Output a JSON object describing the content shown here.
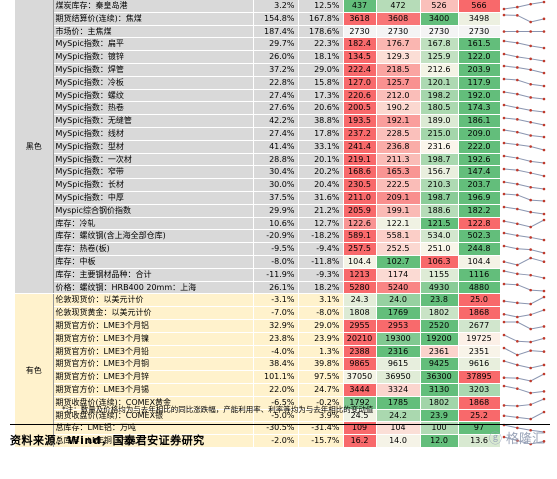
{
  "colors": {
    "black_cat_bg": "#d9d9d9",
    "color_cat_bg": "#fff2cc",
    "red": "#f8696b",
    "green": "#63be7b"
  },
  "sections": [
    {
      "label": "黑色",
      "rows": [
        {
          "name": "煤炭库存：秦皇岛港",
          "p1": "3.2%",
          "p2": "12.5%",
          "v": [
            "437",
            "472",
            "526",
            "566"
          ]
        },
        {
          "name": "期货结算价(连续)：焦煤",
          "p1": "154.8%",
          "p2": "167.8%",
          "v": [
            "3618",
            "3608",
            "3400",
            "3498"
          ]
        },
        {
          "name": "市场价：主焦煤",
          "p1": "187.4%",
          "p2": "178.6%",
          "v": [
            "2730",
            "2730",
            "2730",
            "2730"
          ]
        },
        {
          "name": "MySpic指数：扁平",
          "p1": "29.7%",
          "p2": "22.3%",
          "v": [
            "182.4",
            "176.7",
            "167.8",
            "161.5"
          ]
        },
        {
          "name": "MySpic指数：镀锌",
          "p1": "26.0%",
          "p2": "18.1%",
          "v": [
            "134.5",
            "129.3",
            "125.9",
            "122.0"
          ]
        },
        {
          "name": "MySpic指数：焊管",
          "p1": "37.2%",
          "p2": "29.0%",
          "v": [
            "222.4",
            "218.5",
            "212.6",
            "203.9"
          ]
        },
        {
          "name": "MySpic指数：冷板",
          "p1": "22.8%",
          "p2": "15.8%",
          "v": [
            "127.0",
            "125.7",
            "120.1",
            "117.9"
          ]
        },
        {
          "name": "MySpic指数：螺纹",
          "p1": "27.4%",
          "p2": "17.3%",
          "v": [
            "220.6",
            "212.0",
            "198.2",
            "192.0"
          ]
        },
        {
          "name": "MySpic指数：热卷",
          "p1": "27.6%",
          "p2": "20.6%",
          "v": [
            "200.5",
            "190.2",
            "180.5",
            "174.3"
          ]
        },
        {
          "name": "MySpic指数：无缝管",
          "p1": "42.2%",
          "p2": "38.8%",
          "v": [
            "193.5",
            "192.1",
            "189.0",
            "186.1"
          ]
        },
        {
          "name": "MySpic指数：线材",
          "p1": "27.4%",
          "p2": "17.8%",
          "v": [
            "237.2",
            "228.5",
            "215.0",
            "209.0"
          ]
        },
        {
          "name": "MySpic指数：型材",
          "p1": "41.4%",
          "p2": "33.1%",
          "v": [
            "241.4",
            "236.8",
            "231.6",
            "222.0"
          ]
        },
        {
          "name": "MySpic指数：一次材",
          "p1": "28.8%",
          "p2": "20.1%",
          "v": [
            "219.1",
            "211.3",
            "198.7",
            "192.6"
          ]
        },
        {
          "name": "MySpic指数：窄带",
          "p1": "30.4%",
          "p2": "20.2%",
          "v": [
            "168.6",
            "165.3",
            "156.7",
            "147.4"
          ]
        },
        {
          "name": "MySpic指数：长材",
          "p1": "30.0%",
          "p2": "20.4%",
          "v": [
            "230.5",
            "222.5",
            "210.3",
            "203.7"
          ]
        },
        {
          "name": "MySpic指数：中厚",
          "p1": "37.5%",
          "p2": "31.6%",
          "v": [
            "211.0",
            "209.1",
            "198.7",
            "196.9"
          ]
        },
        {
          "name": "Myspic综合钢价指数",
          "p1": "29.9%",
          "p2": "21.2%",
          "v": [
            "205.9",
            "199.1",
            "188.6",
            "182.2"
          ]
        },
        {
          "name": "库存：冷轧",
          "p1": "10.6%",
          "p2": "12.7%",
          "v": [
            "122.6",
            "122.1",
            "121.5",
            "122.8"
          ]
        },
        {
          "name": "库存：螺纹钢(含上海全部仓库)",
          "p1": "-20.9%",
          "p2": "-18.2%",
          "v": [
            "589.1",
            "558.1",
            "534.0",
            "502.3"
          ]
        },
        {
          "name": "库存：热卷(板)",
          "p1": "-9.5%",
          "p2": "-9.4%",
          "v": [
            "257.5",
            "252.5",
            "251.0",
            "244.8"
          ]
        },
        {
          "name": "库存：中板",
          "p1": "-8.0%",
          "p2": "-11.8%",
          "v": [
            "104.4",
            "102.7",
            "106.3",
            "104.4"
          ]
        },
        {
          "name": "库存：主要钢材品种：合计",
          "p1": "-11.9%",
          "p2": "-9.3%",
          "v": [
            "1213",
            "1174",
            "1155",
            "1116"
          ]
        },
        {
          "name": "价格：螺纹钢：HRB400 20mm：上海",
          "p1": "26.1%",
          "p2": "18.2%",
          "v": [
            "5280",
            "5240",
            "4930",
            "4880"
          ]
        }
      ]
    },
    {
      "label": "有色",
      "rows": [
        {
          "name": "伦敦现货价：以美元计价",
          "p1": "-3.1%",
          "p2": "3.1%",
          "v": [
            "24.3",
            "24.0",
            "23.8",
            "25.0"
          ]
        },
        {
          "name": "伦敦现货黄金：以美元计价",
          "p1": "-7.0%",
          "p2": "-8.0%",
          "v": [
            "1808",
            "1769",
            "1802",
            "1868"
          ]
        },
        {
          "name": "期货官方价：LME3个月铝",
          "p1": "32.9%",
          "p2": "29.0%",
          "v": [
            "2955",
            "2953",
            "2520",
            "2677"
          ]
        },
        {
          "name": "期货官方价：LME3个月镍",
          "p1": "23.8%",
          "p2": "23.9%",
          "v": [
            "20210",
            "19300",
            "19200",
            "19725"
          ]
        },
        {
          "name": "期货官方价：LME3个月铅",
          "p1": "-4.0%",
          "p2": "1.3%",
          "v": [
            "2388",
            "2316",
            "2361",
            "2351"
          ]
        },
        {
          "name": "期货官方价：LME3个月铜",
          "p1": "38.4%",
          "p2": "39.8%",
          "v": [
            "9865",
            "9615",
            "9425",
            "9616"
          ]
        },
        {
          "name": "期货官方价：LME3个月锌",
          "p1": "101.1%",
          "p2": "97.5%",
          "v": [
            "37050",
            "36950",
            "36300",
            "37895"
          ]
        },
        {
          "name": "期货官方价：LME3个月锡",
          "p1": "22.0%",
          "p2": "24.7%",
          "v": [
            "3444",
            "3324",
            "3130",
            "3203"
          ]
        },
        {
          "name": "期货收盘价(连续)：COMEX黄金",
          "p1": "-6.5%",
          "p2": "-0.2%",
          "v": [
            "1792",
            "1785",
            "1802",
            "1868"
          ]
        },
        {
          "name": "期货收盘价(连续)：COMEX银",
          "p1": "-5.0%",
          "p2": "3.9%",
          "v": [
            "24.5",
            "24.2",
            "23.9",
            "25.2"
          ]
        },
        {
          "name": "总库存：LME铝：万吨",
          "p1": "-30.5%",
          "p2": "-31.4%",
          "v": [
            "109",
            "104",
            "100",
            "97"
          ]
        },
        {
          "name": "总库存：LME铜：万吨",
          "p1": "-2.0%",
          "p2": "-15.7%",
          "v": [
            "16.2",
            "14.0",
            "12.0",
            "13.6"
          ]
        }
      ]
    }
  ],
  "note": "*注：数量及价格均为与去年相比的同比涨跌幅，产能利用率、利率等均为与去年相比的变动值",
  "footer": "资料来源：Wind，国泰君安证券研究",
  "watermark": "格隆汇"
}
